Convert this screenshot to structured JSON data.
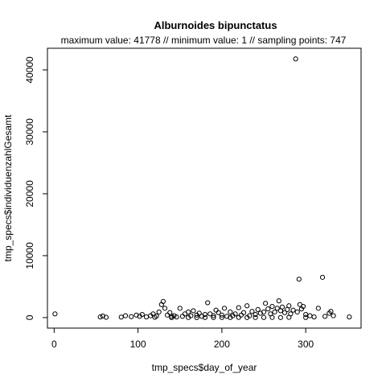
{
  "chart_data": {
    "type": "scatter",
    "title": "Alburnoides bipunctatus",
    "subtitle": "maximum value: 41778  //  minimum value: 1  // sampling points: 747",
    "xlabel": "tmp_specs$day_of_year",
    "ylabel": "tmp_specs$individuenzahlGesamt",
    "xlim": [
      -8,
      366
    ],
    "ylim": [
      -1700,
      43500
    ],
    "xticks": [
      0,
      100,
      200,
      300
    ],
    "yticks": [
      0,
      10000,
      20000,
      30000,
      40000
    ],
    "xtick_labels": [
      "0",
      "100",
      "200",
      "300"
    ],
    "ytick_labels": [
      "0",
      "10000",
      "20000",
      "30000",
      "40000"
    ],
    "marker": "open-circle",
    "grid": false,
    "points": [
      [
        1,
        600
      ],
      [
        55,
        100
      ],
      [
        58,
        250
      ],
      [
        62,
        50
      ],
      [
        80,
        80
      ],
      [
        85,
        300
      ],
      [
        92,
        150
      ],
      [
        98,
        400
      ],
      [
        102,
        200
      ],
      [
        105,
        500
      ],
      [
        110,
        100
      ],
      [
        115,
        300
      ],
      [
        118,
        600
      ],
      [
        120,
        50
      ],
      [
        122,
        250
      ],
      [
        125,
        900
      ],
      [
        128,
        2100
      ],
      [
        130,
        2600
      ],
      [
        132,
        1500
      ],
      [
        135,
        400
      ],
      [
        138,
        800
      ],
      [
        140,
        200
      ],
      [
        143,
        300
      ],
      [
        146,
        100
      ],
      [
        150,
        1500
      ],
      [
        153,
        200
      ],
      [
        156,
        600
      ],
      [
        160,
        900
      ],
      [
        163,
        300
      ],
      [
        166,
        1100
      ],
      [
        170,
        400
      ],
      [
        173,
        700
      ],
      [
        176,
        200
      ],
      [
        180,
        500
      ],
      [
        183,
        2400
      ],
      [
        186,
        600
      ],
      [
        190,
        300
      ],
      [
        193,
        1200
      ],
      [
        196,
        800
      ],
      [
        200,
        400
      ],
      [
        203,
        1500
      ],
      [
        206,
        200
      ],
      [
        210,
        900
      ],
      [
        213,
        300
      ],
      [
        216,
        600
      ],
      [
        220,
        1600
      ],
      [
        223,
        400
      ],
      [
        226,
        800
      ],
      [
        230,
        1900
      ],
      [
        233,
        300
      ],
      [
        236,
        1000
      ],
      [
        240,
        500
      ],
      [
        243,
        1300
      ],
      [
        246,
        700
      ],
      [
        250,
        900
      ],
      [
        252,
        2300
      ],
      [
        255,
        1400
      ],
      [
        258,
        600
      ],
      [
        260,
        1800
      ],
      [
        263,
        900
      ],
      [
        266,
        1500
      ],
      [
        268,
        2700
      ],
      [
        270,
        1100
      ],
      [
        272,
        1700
      ],
      [
        275,
        800
      ],
      [
        278,
        1300
      ],
      [
        280,
        1900
      ],
      [
        282,
        600
      ],
      [
        285,
        1200
      ],
      [
        288,
        41778
      ],
      [
        290,
        900
      ],
      [
        292,
        6200
      ],
      [
        293,
        2100
      ],
      [
        295,
        1400
      ],
      [
        297,
        1800
      ],
      [
        300,
        500
      ],
      [
        305,
        300
      ],
      [
        310,
        100
      ],
      [
        315,
        1500
      ],
      [
        320,
        6500
      ],
      [
        323,
        200
      ],
      [
        328,
        700
      ],
      [
        330,
        1000
      ],
      [
        333,
        300
      ],
      [
        352,
        100
      ],
      [
        140,
        5
      ],
      [
        160,
        10
      ],
      [
        180,
        20
      ],
      [
        200,
        15
      ],
      [
        220,
        30
      ],
      [
        240,
        10
      ],
      [
        260,
        25
      ],
      [
        280,
        40
      ],
      [
        300,
        20
      ],
      [
        170,
        1
      ],
      [
        190,
        8
      ],
      [
        210,
        12
      ],
      [
        230,
        6
      ],
      [
        250,
        18
      ],
      [
        270,
        9
      ]
    ]
  }
}
